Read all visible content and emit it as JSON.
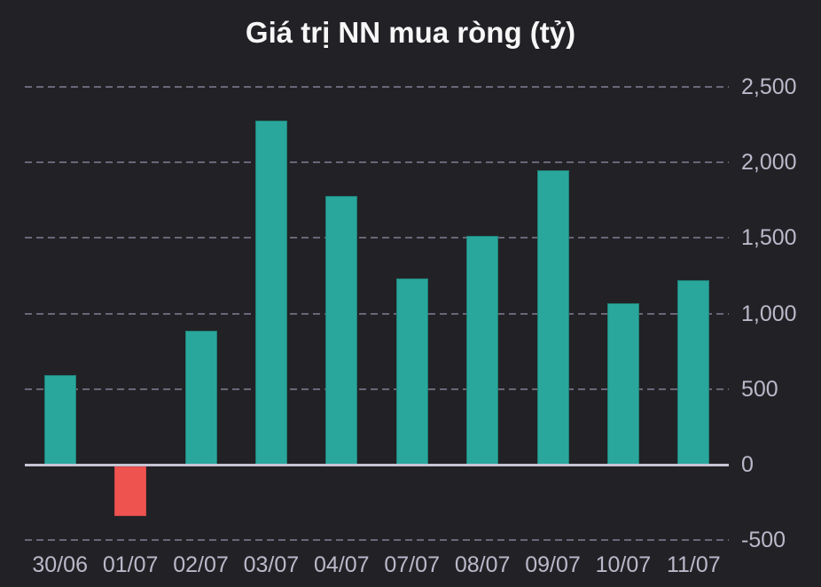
{
  "chart_data": {
    "type": "bar",
    "title": "Giá trị NN mua ròng (tỷ)",
    "categories": [
      "30/06",
      "01/07",
      "02/07",
      "03/07",
      "04/07",
      "07/07",
      "08/07",
      "09/07",
      "10/07",
      "11/07"
    ],
    "values": [
      590,
      -330,
      885,
      2275,
      1780,
      1230,
      1515,
      1950,
      1070,
      1220
    ],
    "xlabel": "",
    "ylabel": "",
    "unit": "tỷ",
    "ylim": [
      -500,
      2500
    ],
    "yticks": [
      -500,
      0,
      500,
      1000,
      1500,
      2000,
      2500
    ],
    "ytick_labels": [
      "-500",
      "0",
      "500",
      "1,000",
      "1,500",
      "2,000",
      "2,500"
    ],
    "y_axis_side": "right",
    "grid": {
      "horizontal": true,
      "style": "dashed",
      "zero_line": "solid"
    },
    "legend": "none",
    "colors": {
      "background": "#222226",
      "positive_bar": "#2aa79c",
      "positive_bar_border": "#1f8177",
      "negative_bar": "#ef5350",
      "negative_bar_border": "#d04947",
      "grid_line": "#6a6678",
      "zero_line": "#c7c4d4",
      "tick_label": "#bcb8ca",
      "title": "#f7f7f8"
    }
  }
}
